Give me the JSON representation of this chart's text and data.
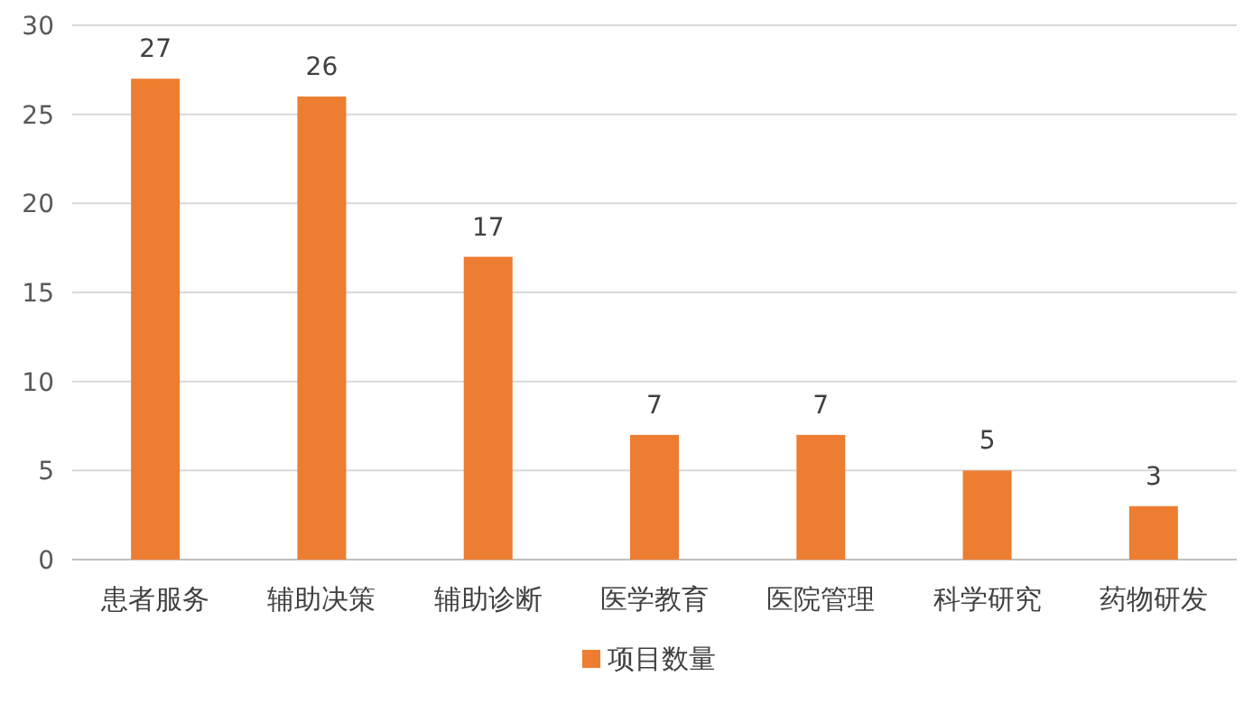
{
  "chart_data": {
    "type": "bar",
    "categories": [
      "患者服务",
      "辅助决策",
      "辅助诊断",
      "医学教育",
      "医院管理",
      "科学研究",
      "药物研发"
    ],
    "series": [
      {
        "name": "项目数量",
        "color": "#ed7d31",
        "values": [
          27,
          26,
          17,
          7,
          7,
          5,
          3
        ]
      }
    ],
    "ylim": [
      0,
      30
    ],
    "yticks": [
      0,
      5,
      10,
      15,
      20,
      25,
      30
    ],
    "grid": "y",
    "data_labels": true,
    "legend": "bottom"
  }
}
